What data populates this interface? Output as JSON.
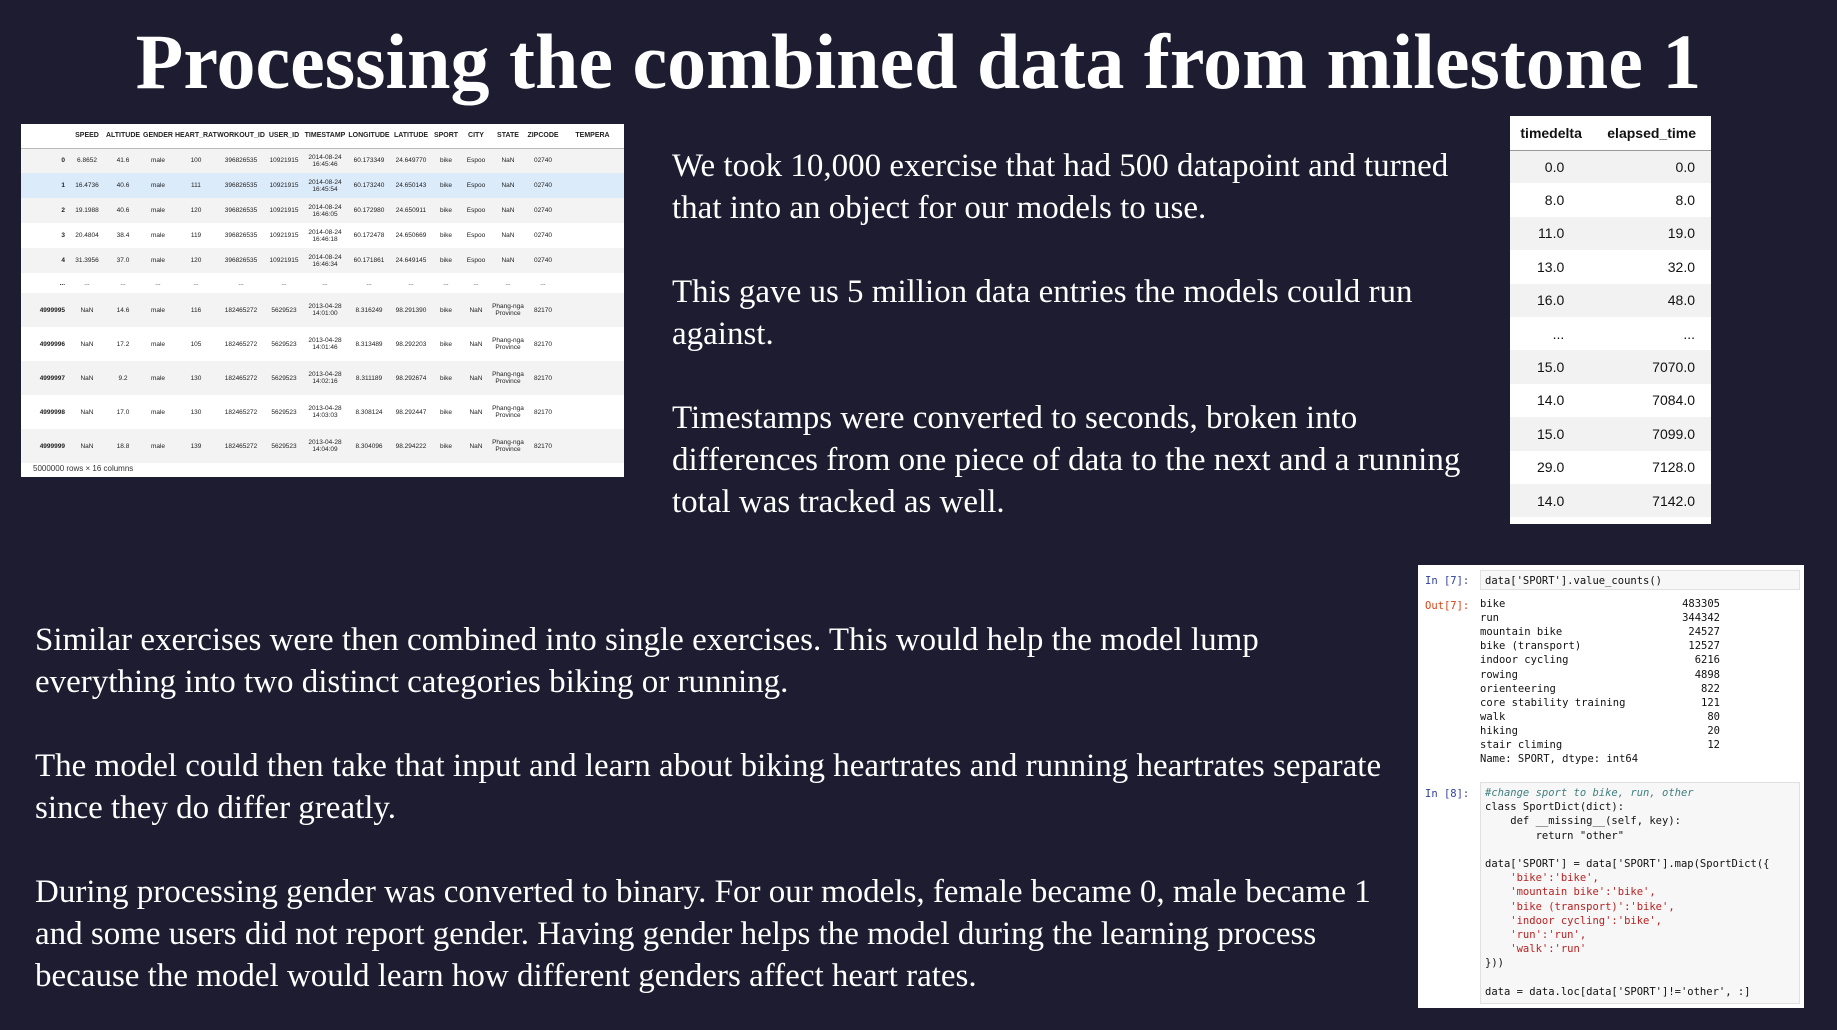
{
  "title": "Processing the combined data from milestone 1",
  "paragraphs_top": [
    "We took 10,000 exercise that had 500 datapoint and turned that into an object for our models to use.",
    "This gave us 5 million data entries the models could run against.",
    "Timestamps were converted to seconds, broken into differences from one piece of data to the next and a running total was tracked as well."
  ],
  "paragraphs_bottom": [
    "Similar exercises were then combined into single exercises.  This would help the model lump everything into two distinct categories biking or running.",
    "The model could then take that  input and learn about biking heartrates and running heartrates separate since they do differ greatly.",
    "During processing gender was converted to binary.  For our models, female became 0, male became 1 and some users did not report gender.  Having gender helps the model during the learning process because the model would learn how different genders affect heart rates."
  ],
  "dataframe": {
    "columns": [
      "",
      "SPEED",
      "ALTITUDE",
      "GENDER",
      "HEART_RATE",
      "WORKOUT_ID",
      "USER_ID",
      "TIMESTAMP",
      "LONGITUDE",
      "LATITUDE",
      "SPORT",
      "CITY",
      "STATE",
      "ZIPCODE",
      "TEMPERA"
    ],
    "rows": [
      [
        "0",
        "6.8652",
        "41.6",
        "male",
        "100",
        "396826535",
        "10921915",
        "2014-08-24 16:45:46",
        "60.173349",
        "24.649770",
        "bike",
        "Espoo",
        "NaN",
        "02740",
        ""
      ],
      [
        "1",
        "16.4736",
        "40.6",
        "male",
        "111",
        "396826535",
        "10921915",
        "2014-08-24 16:45:54",
        "60.173240",
        "24.650143",
        "bike",
        "Espoo",
        "NaN",
        "02740",
        ""
      ],
      [
        "2",
        "19.1988",
        "40.6",
        "male",
        "120",
        "396826535",
        "10921915",
        "2014-08-24 16:46:05",
        "60.172980",
        "24.650911",
        "bike",
        "Espoo",
        "NaN",
        "02740",
        ""
      ],
      [
        "3",
        "20.4804",
        "38.4",
        "male",
        "119",
        "396826535",
        "10921915",
        "2014-08-24 16:46:18",
        "60.172478",
        "24.650669",
        "bike",
        "Espoo",
        "NaN",
        "02740",
        ""
      ],
      [
        "4",
        "31.3956",
        "37.0",
        "male",
        "120",
        "396826535",
        "10921915",
        "2014-08-24 16:46:34",
        "60.171861",
        "24.649145",
        "bike",
        "Espoo",
        "NaN",
        "02740",
        ""
      ],
      [
        "...",
        "...",
        "...",
        "...",
        "...",
        "...",
        "...",
        "...",
        "...",
        "...",
        "...",
        "...",
        "...",
        "...",
        ""
      ],
      [
        "4999995",
        "NaN",
        "14.6",
        "male",
        "116",
        "182465272",
        "5629523",
        "2013-04-28 14:01:00",
        "8.316249",
        "98.291390",
        "bike",
        "NaN",
        "Phang-nga Province",
        "82170",
        ""
      ],
      [
        "4999996",
        "NaN",
        "17.2",
        "male",
        "105",
        "182465272",
        "5629523",
        "2013-04-28 14:01:46",
        "8.313489",
        "98.292203",
        "bike",
        "NaN",
        "Phang-nga Province",
        "82170",
        ""
      ],
      [
        "4999997",
        "NaN",
        "9.2",
        "male",
        "130",
        "182465272",
        "5629523",
        "2013-04-28 14:02:16",
        "8.311189",
        "98.292674",
        "bike",
        "NaN",
        "Phang-nga Province",
        "82170",
        ""
      ],
      [
        "4999998",
        "NaN",
        "17.0",
        "male",
        "130",
        "182465272",
        "5629523",
        "2013-04-28 14:03:03",
        "8.308124",
        "98.292447",
        "bike",
        "NaN",
        "Phang-nga Province",
        "82170",
        ""
      ],
      [
        "4999999",
        "NaN",
        "18.8",
        "male",
        "139",
        "182465272",
        "5629523",
        "2013-04-28 14:04:09",
        "8.304096",
        "98.294222",
        "bike",
        "NaN",
        "Phang-nga Province",
        "82170",
        ""
      ]
    ],
    "footer": "5000000 rows × 16 columns"
  },
  "elapsed_table": {
    "headers": [
      "timedelta",
      "elapsed_time"
    ],
    "rows": [
      [
        "0.0",
        "0.0"
      ],
      [
        "8.0",
        "8.0"
      ],
      [
        "11.0",
        "19.0"
      ],
      [
        "13.0",
        "32.0"
      ],
      [
        "16.0",
        "48.0"
      ],
      [
        "...",
        "..."
      ],
      [
        "15.0",
        "7070.0"
      ],
      [
        "14.0",
        "7084.0"
      ],
      [
        "15.0",
        "7099.0"
      ],
      [
        "29.0",
        "7128.0"
      ],
      [
        "14.0",
        "7142.0"
      ]
    ]
  },
  "notebook": {
    "cell7_in_prompt": "In [7]:",
    "cell7_code": "data['SPORT'].value_counts()",
    "cell7_out_prompt": "Out[7]:",
    "cell7_output": [
      [
        "bike",
        "483305"
      ],
      [
        "run",
        "344342"
      ],
      [
        "mountain bike",
        "24527"
      ],
      [
        "bike (transport)",
        "12527"
      ],
      [
        "indoor cycling",
        "6216"
      ],
      [
        "rowing",
        "4898"
      ],
      [
        "orienteering",
        "822"
      ],
      [
        "core stability training",
        "121"
      ],
      [
        "walk",
        "80"
      ],
      [
        "hiking",
        "20"
      ],
      [
        "stair climing",
        "12"
      ]
    ],
    "cell7_footer": "Name: SPORT, dtype: int64",
    "cell8_in_prompt": "In [8]:",
    "cell8_code": [
      "#change sport to bike, run, other",
      "class SportDict(dict):",
      "    def __missing__(self, key):",
      "        return \"other\"",
      "",
      "data['SPORT'] = data['SPORT'].map(SportDict({",
      "    'bike':'bike',",
      "    'mountain bike':'bike',",
      "    'bike (transport)':'bike',",
      "    'indoor cycling':'bike',",
      "    'run':'run',",
      "    'walk':'run'",
      "}))",
      "",
      "data = data.loc[data['SPORT']!='other', :]"
    ]
  }
}
